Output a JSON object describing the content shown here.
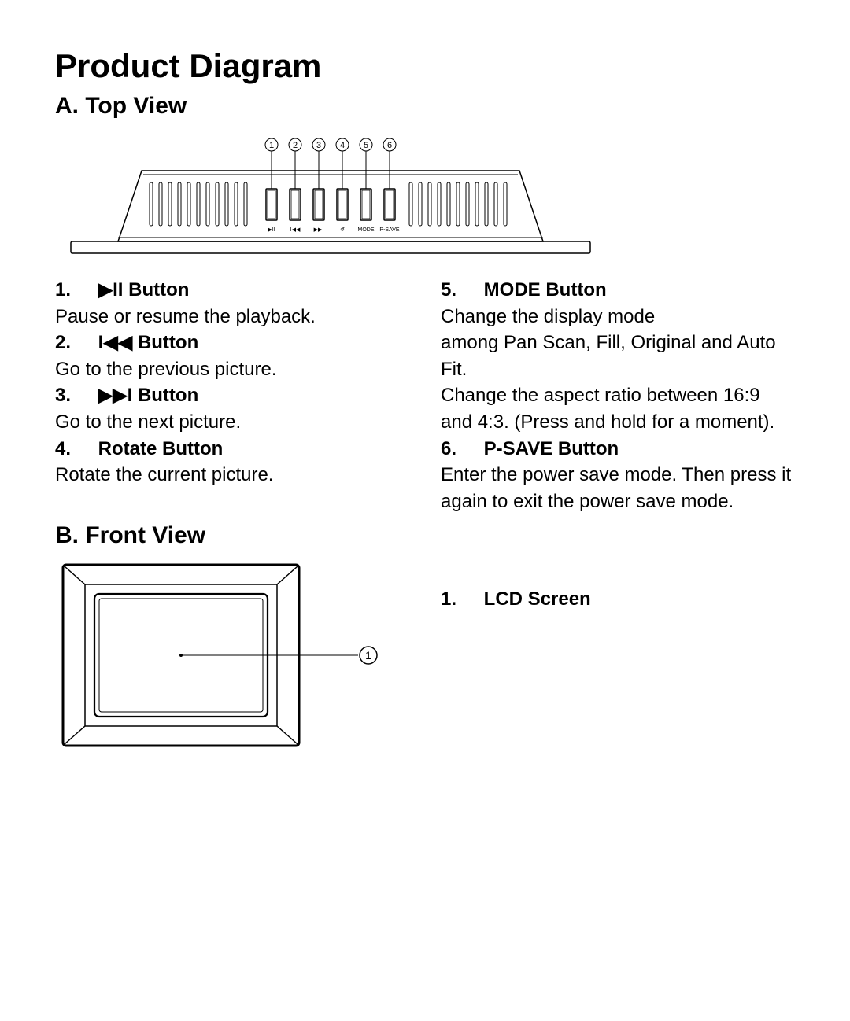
{
  "title": "Product Diagram",
  "sectionA": {
    "heading": "A. Top View",
    "callouts": [
      "1",
      "2",
      "3",
      "4",
      "5",
      "6"
    ],
    "button_icons": [
      "▶II",
      "I◀◀",
      "▶▶I",
      "↺",
      "MODE",
      "P-SAVE"
    ],
    "items": [
      {
        "num": "1.",
        "icon": "▶II",
        "title": "Button",
        "desc": "Pause or resume the playback."
      },
      {
        "num": "2.",
        "icon": "I◀◀",
        "title": "Button",
        "desc": "Go to the previous picture."
      },
      {
        "num": "3.",
        "icon": "▶▶I",
        "title": "Button",
        "desc": "Go to the next picture."
      },
      {
        "num": "4.",
        "icon": "",
        "title": "Rotate Button",
        "desc": "Rotate the current picture."
      },
      {
        "num": "5.",
        "icon": "",
        "title": "MODE Button",
        "desc": "Change the display mode"
      }
    ],
    "items_right": [
      {
        "desc": "among Pan Scan, Fill, Original and Auto Fit."
      },
      {
        "desc": "Change the aspect ratio between 16:9 and 4:3. (Press and hold for a moment)."
      },
      {
        "num": "6.",
        "icon": "",
        "title": "P-SAVE Button",
        "desc": "Enter the power save mode. Then press it again to exit the power save mode."
      }
    ]
  },
  "sectionB": {
    "heading": "B. Front View",
    "callout": "1",
    "label_num": "1.",
    "label_title": "LCD Screen"
  },
  "style": {
    "stroke": "#000000",
    "stroke_width": 1.5,
    "bg": "#ffffff",
    "title_fontsize": 42,
    "h2_fontsize": 30,
    "body_fontsize": 24
  }
}
